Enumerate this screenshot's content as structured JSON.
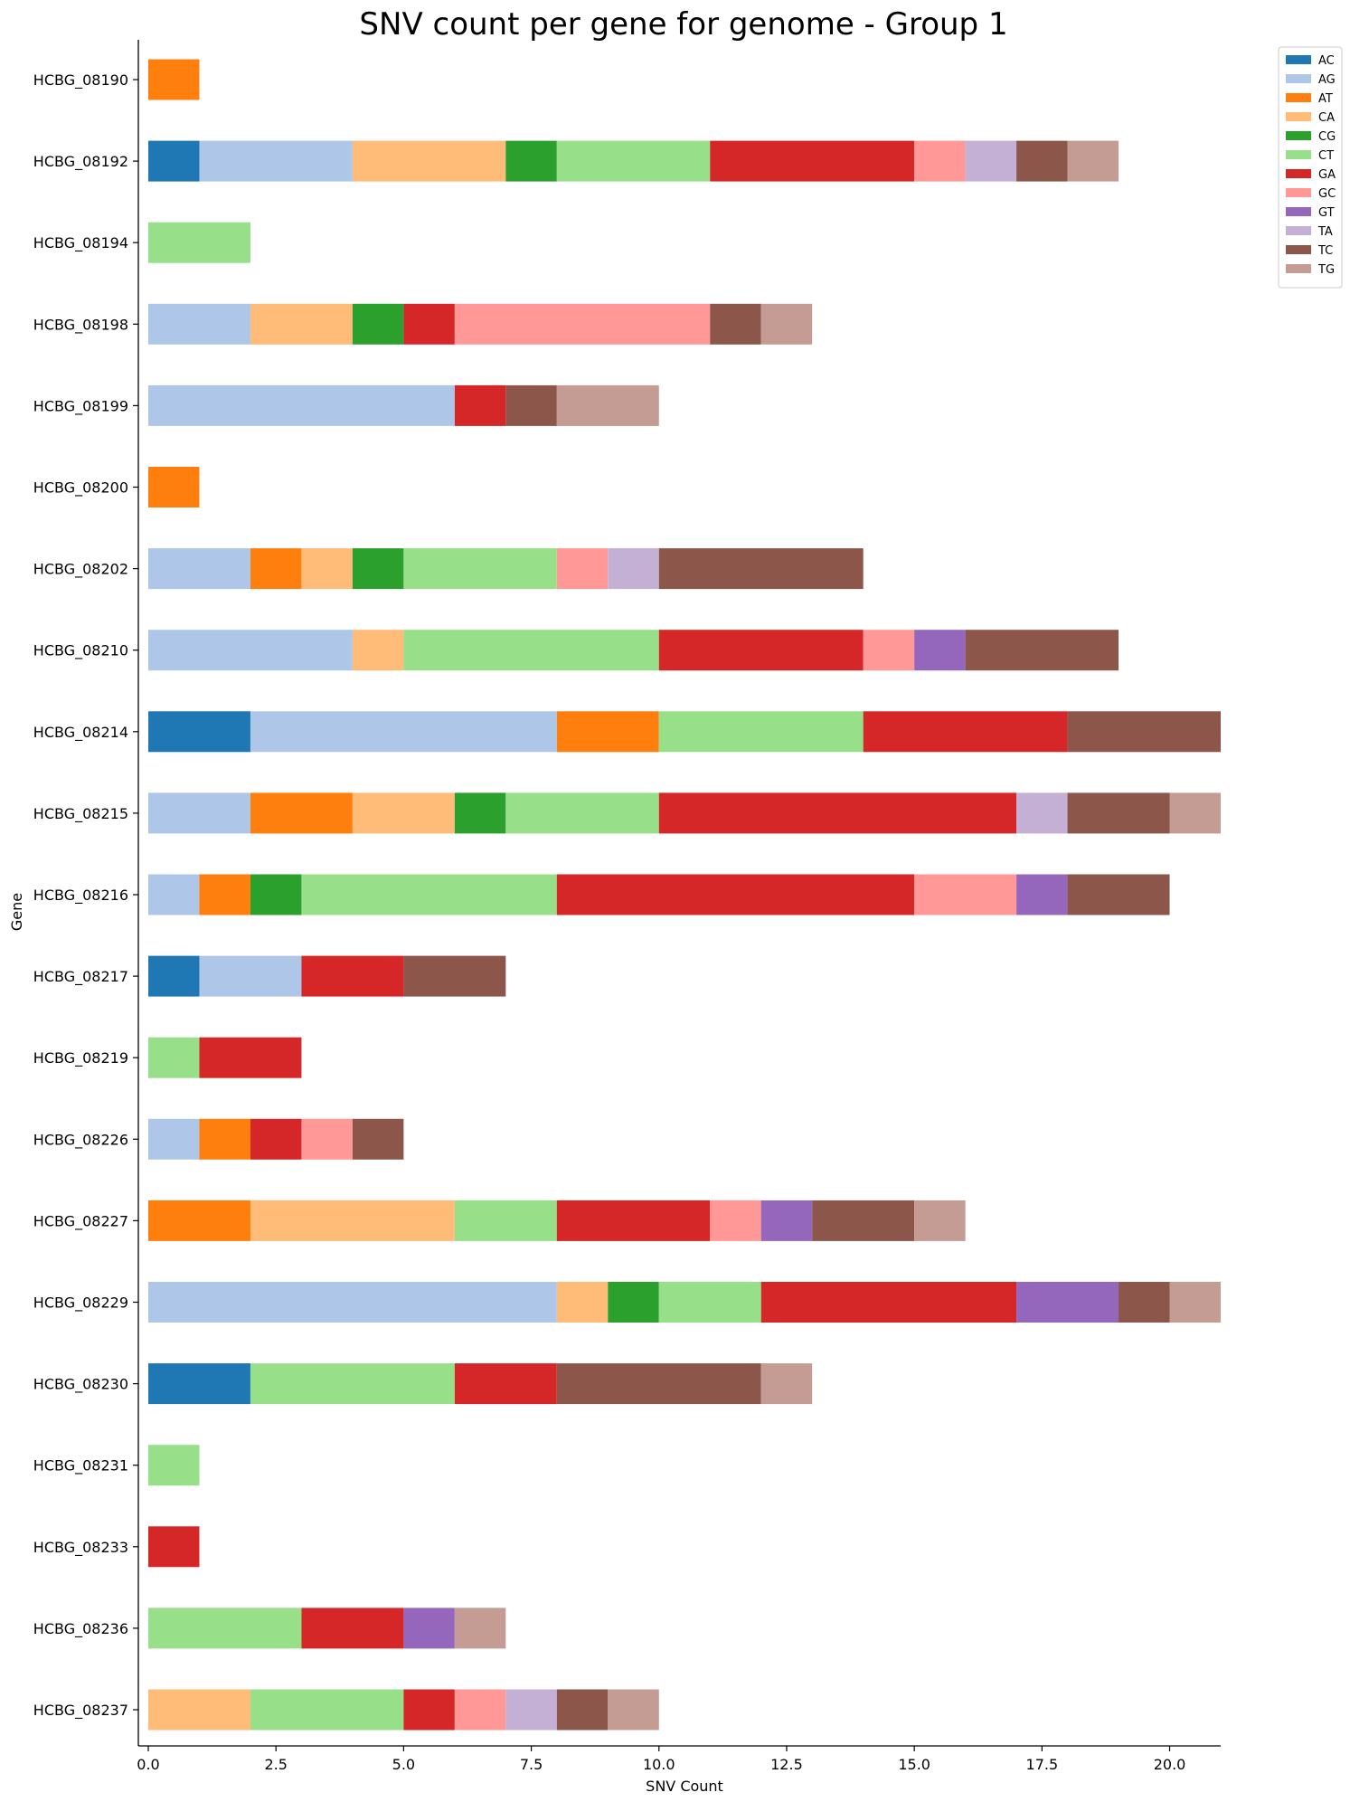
{
  "chart_data": {
    "type": "bar",
    "orientation": "horizontal",
    "stacked": true,
    "title": "SNV count per gene for genome - Group 1",
    "xlabel": "SNV Count",
    "ylabel": "Gene",
    "xlim": [
      0,
      21
    ],
    "xticks": [
      "0.0",
      "2.5",
      "5.0",
      "7.5",
      "10.0",
      "12.5",
      "15.0",
      "17.5",
      "20.0"
    ],
    "xtick_values": [
      0,
      2.5,
      5,
      7.5,
      10,
      12.5,
      15,
      17.5,
      20
    ],
    "grid": false,
    "legend_position": "top-right",
    "categories": [
      "HCBG_08190",
      "HCBG_08192",
      "HCBG_08194",
      "HCBG_08198",
      "HCBG_08199",
      "HCBG_08200",
      "HCBG_08202",
      "HCBG_08210",
      "HCBG_08214",
      "HCBG_08215",
      "HCBG_08216",
      "HCBG_08217",
      "HCBG_08219",
      "HCBG_08226",
      "HCBG_08227",
      "HCBG_08229",
      "HCBG_08230",
      "HCBG_08231",
      "HCBG_08233",
      "HCBG_08236",
      "HCBG_08237"
    ],
    "series": [
      {
        "name": "AC",
        "color": "#1f77b4",
        "values": [
          0,
          1,
          0,
          0,
          0,
          0,
          0,
          0,
          2,
          0,
          0,
          1,
          0,
          0,
          0,
          0,
          2,
          0,
          0,
          0,
          0
        ]
      },
      {
        "name": "AG",
        "color": "#aec7e8",
        "values": [
          0,
          3,
          0,
          2,
          6,
          0,
          2,
          4,
          6,
          2,
          1,
          2,
          0,
          1,
          0,
          8,
          0,
          0,
          0,
          0,
          0
        ]
      },
      {
        "name": "AT",
        "color": "#ff7f0e",
        "values": [
          1,
          0,
          0,
          0,
          0,
          1,
          1,
          0,
          2,
          2,
          1,
          0,
          0,
          1,
          2,
          0,
          0,
          0,
          0,
          0,
          0
        ]
      },
      {
        "name": "CA",
        "color": "#ffbb78",
        "values": [
          0,
          3,
          0,
          2,
          0,
          0,
          1,
          1,
          0,
          2,
          0,
          0,
          0,
          0,
          4,
          1,
          0,
          0,
          0,
          0,
          2
        ]
      },
      {
        "name": "CG",
        "color": "#2ca02c",
        "values": [
          0,
          1,
          0,
          1,
          0,
          0,
          1,
          0,
          0,
          1,
          1,
          0,
          0,
          0,
          0,
          1,
          0,
          0,
          0,
          0,
          0
        ]
      },
      {
        "name": "CT",
        "color": "#98df8a",
        "values": [
          0,
          3,
          2,
          0,
          0,
          0,
          3,
          5,
          4,
          3,
          5,
          0,
          1,
          0,
          2,
          2,
          4,
          1,
          0,
          3,
          3
        ]
      },
      {
        "name": "GA",
        "color": "#d62728",
        "values": [
          0,
          4,
          0,
          1,
          1,
          0,
          0,
          4,
          4,
          7,
          7,
          2,
          2,
          1,
          3,
          5,
          2,
          0,
          1,
          2,
          1
        ]
      },
      {
        "name": "GC",
        "color": "#ff9896",
        "values": [
          0,
          1,
          0,
          5,
          0,
          0,
          1,
          1,
          0,
          0,
          2,
          0,
          0,
          1,
          1,
          0,
          0,
          0,
          0,
          0,
          1
        ]
      },
      {
        "name": "GT",
        "color": "#9467bd",
        "values": [
          0,
          0,
          0,
          0,
          0,
          0,
          0,
          1,
          0,
          0,
          1,
          0,
          0,
          0,
          1,
          2,
          0,
          0,
          0,
          1,
          0
        ]
      },
      {
        "name": "TA",
        "color": "#c5b0d5",
        "values": [
          0,
          1,
          0,
          0,
          0,
          0,
          1,
          0,
          0,
          1,
          0,
          0,
          0,
          0,
          0,
          0,
          0,
          0,
          0,
          0,
          1
        ]
      },
      {
        "name": "TC",
        "color": "#8c564b",
        "values": [
          0,
          1,
          0,
          1,
          1,
          0,
          4,
          3,
          3,
          2,
          2,
          2,
          0,
          1,
          2,
          1,
          4,
          0,
          0,
          0,
          1
        ]
      },
      {
        "name": "TG",
        "color": "#c49c94",
        "values": [
          0,
          1,
          0,
          1,
          2,
          0,
          0,
          0,
          0,
          1,
          0,
          0,
          0,
          0,
          1,
          1,
          1,
          0,
          0,
          1,
          1
        ]
      }
    ]
  }
}
